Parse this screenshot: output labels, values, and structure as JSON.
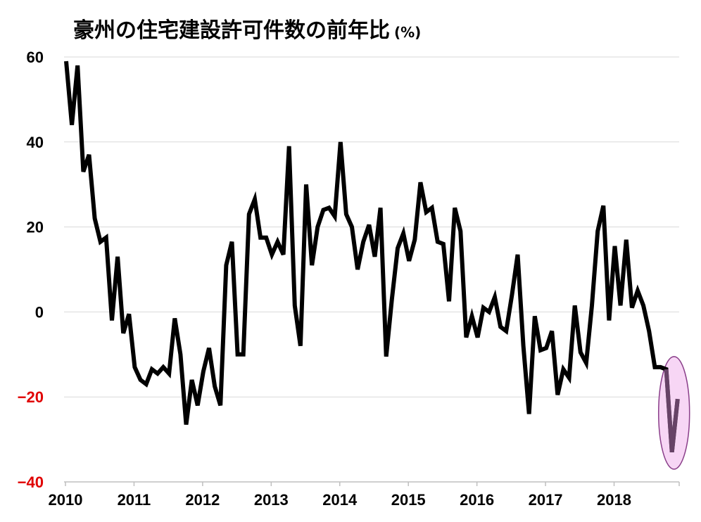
{
  "chart_data": {
    "type": "line",
    "title": "豪州の住宅建設許可件数の前年比",
    "unit": "(%)",
    "ylim": [
      -40,
      60
    ],
    "yticks": [
      {
        "value": 60,
        "label": "60"
      },
      {
        "value": 40,
        "label": "40"
      },
      {
        "value": 20,
        "label": "20"
      },
      {
        "value": 0,
        "label": "0"
      },
      {
        "value": -20,
        "label": "−20",
        "color": "#e00000"
      },
      {
        "value": -40,
        "label": "−40",
        "color": "#e00000"
      }
    ],
    "xticks": [
      "2010",
      "2011",
      "2012",
      "2013",
      "2014",
      "2015",
      "2016",
      "2017",
      "2018"
    ],
    "xlim_months": [
      0,
      107
    ],
    "line_color": "#000000",
    "highlight": {
      "from_index": 106,
      "to_index": 108,
      "fill": "#f7d6f5",
      "stroke": "#8a3f8a"
    },
    "series": [
      {
        "values": [
          59,
          44,
          58,
          33,
          37,
          22,
          16.5,
          17.5,
          -2,
          13,
          -5,
          -0.5,
          -13,
          -16,
          -17,
          -13.5,
          -14.5,
          -13,
          -14.5,
          -1.5,
          -10,
          -26.5,
          -16,
          -22,
          -14,
          -8.5,
          -17.5,
          -22,
          11,
          16.5,
          -10,
          -10,
          23,
          26.5,
          17.5,
          17.5,
          13.5,
          16.5,
          13.5,
          39,
          1.5,
          -8,
          30,
          11,
          20,
          24,
          24.5,
          22.5,
          40,
          23,
          20,
          10,
          16.5,
          20.5,
          13,
          24.5,
          -10.5,
          3,
          15,
          18.5,
          12,
          17,
          30.5,
          23.5,
          24.5,
          16.5,
          16,
          2.5,
          24.5,
          19,
          -6,
          -1,
          -6,
          1,
          0,
          3.5,
          -3.5,
          -4.5,
          4,
          13.5,
          -8,
          -24,
          -1,
          -9,
          -8.5,
          -4.5,
          -19.5,
          -13.5,
          -15.5,
          1.5,
          -9.5,
          -12,
          1.5,
          19,
          25,
          -2,
          15.5,
          1.5,
          17,
          1,
          5,
          1.5,
          -4.5,
          -13,
          -13,
          -13.5,
          -33,
          -20.5
        ]
      }
    ]
  }
}
